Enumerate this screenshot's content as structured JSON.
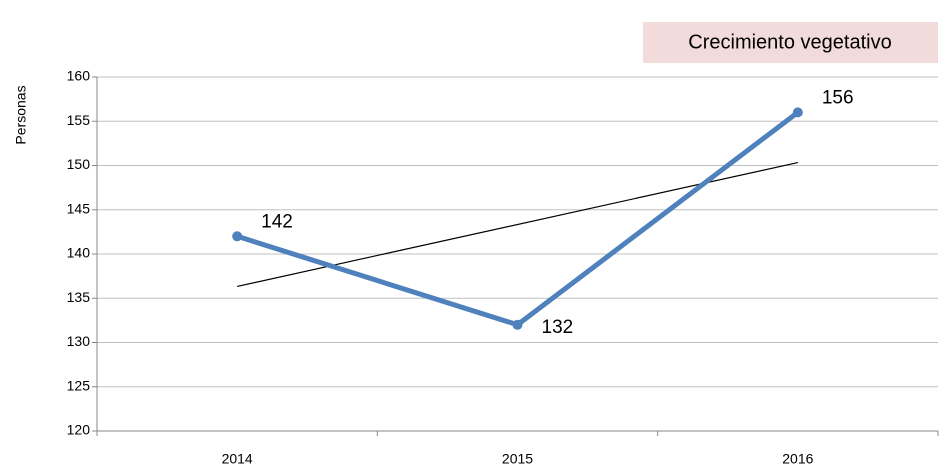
{
  "chart_data": {
    "type": "line",
    "title": "Crecimiento vegetativo",
    "y_label": "Personas",
    "categories": [
      "2014",
      "2015",
      "2016"
    ],
    "values": [
      142,
      132,
      156
    ],
    "color": "#4f81bd",
    "ylim": [
      120,
      160
    ],
    "yticks": [
      120,
      125,
      130,
      135,
      140,
      145,
      150,
      155,
      160
    ],
    "grid": true,
    "trendline": "linear"
  }
}
